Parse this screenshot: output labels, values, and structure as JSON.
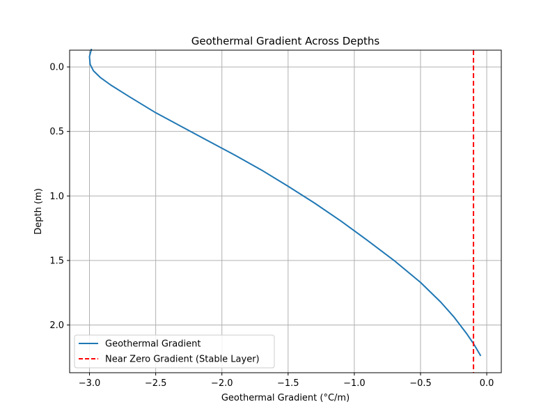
{
  "chart_data": {
    "type": "line",
    "title": "Geothermal Gradient Across Depths",
    "xlabel": "Geothermal Gradient (°C/m)",
    "ylabel": "Depth (m)",
    "xlim": [
      -3.15,
      0.11
    ],
    "ylim": [
      2.37,
      -0.13
    ],
    "y_inverted": true,
    "grid": true,
    "legend_position": "lower-left",
    "x_ticks": [
      -3.0,
      -2.5,
      -2.0,
      -1.5,
      -1.0,
      -0.5,
      0.0
    ],
    "x_tick_labels": [
      "−3.0",
      "−2.5",
      "−2.0",
      "−1.5",
      "−1.0",
      "−0.5",
      "0.0"
    ],
    "y_ticks": [
      0.0,
      0.5,
      1.0,
      1.5,
      2.0
    ],
    "y_tick_labels": [
      "0.0",
      "0.5",
      "1.0",
      "1.5",
      "2.0"
    ],
    "series": [
      {
        "name": "Geothermal Gradient",
        "color": "#1f77b4",
        "style": "solid",
        "points": [
          [
            -2.985,
            -0.14
          ],
          [
            -3.0,
            -0.08
          ],
          [
            -2.995,
            -0.02
          ],
          [
            -2.97,
            0.03
          ],
          [
            -2.92,
            0.08
          ],
          [
            -2.84,
            0.14
          ],
          [
            -2.7,
            0.23
          ],
          [
            -2.5,
            0.355
          ],
          [
            -2.3,
            0.465
          ],
          [
            -2.1,
            0.575
          ],
          [
            -1.9,
            0.685
          ],
          [
            -1.7,
            0.8
          ],
          [
            -1.5,
            0.925
          ],
          [
            -1.3,
            1.055
          ],
          [
            -1.1,
            1.195
          ],
          [
            -0.9,
            1.345
          ],
          [
            -0.7,
            1.5
          ],
          [
            -0.5,
            1.67
          ],
          [
            -0.35,
            1.82
          ],
          [
            -0.25,
            1.935
          ],
          [
            -0.15,
            2.07
          ],
          [
            -0.1,
            2.145
          ],
          [
            -0.045,
            2.24
          ]
        ]
      },
      {
        "name": "Near Zero Gradient (Stable Layer)",
        "color": "#ff0000",
        "style": "dashed",
        "x_value": -0.1
      }
    ]
  }
}
